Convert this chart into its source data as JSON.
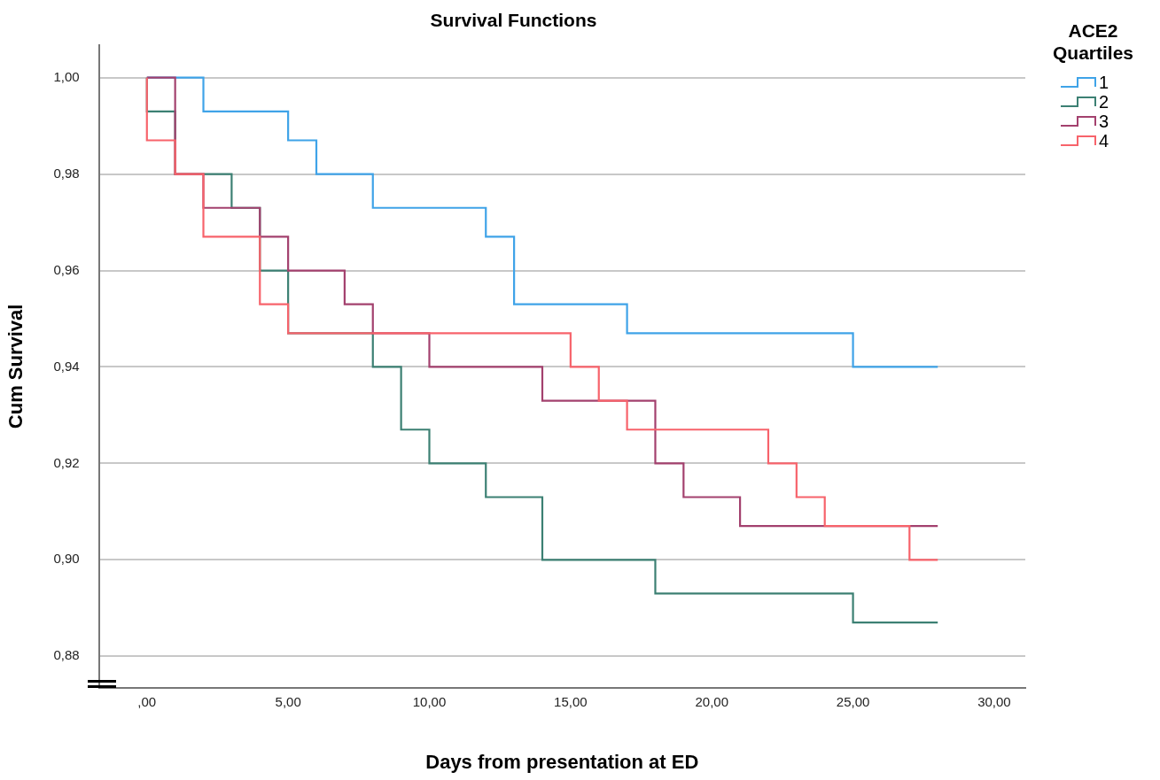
{
  "chart_data": {
    "type": "step",
    "title": "Survival Functions",
    "xlabel": "Days from presentation at ED",
    "ylabel": "Cum Survival",
    "legend_title": "ACE2 Quartiles",
    "legend": "top right",
    "grid": "y",
    "marker": "none",
    "line_style": "solid",
    "xlim": [
      -1.7,
      31.1
    ],
    "xticks": [
      {
        "value": 0,
        "label": ",00"
      },
      {
        "value": 5,
        "label": "5,00"
      },
      {
        "value": 10,
        "label": "10,00"
      },
      {
        "value": 15,
        "label": "15,00"
      },
      {
        "value": 20,
        "label": "20,00"
      },
      {
        "value": 25,
        "label": "25,00"
      },
      {
        "value": 30,
        "label": "30,00"
      }
    ],
    "ylim": [
      0.8735,
      1.0067
    ],
    "yticks": [
      {
        "value": 0.88,
        "label": "0,88"
      },
      {
        "value": 0.9,
        "label": "0,90"
      },
      {
        "value": 0.92,
        "label": "0,92"
      },
      {
        "value": 0.94,
        "label": "0,94"
      },
      {
        "value": 0.96,
        "label": "0,96"
      },
      {
        "value": 0.98,
        "label": "0,98"
      },
      {
        "value": 1,
        "label": "1,00"
      }
    ],
    "series": [
      {
        "name": "1",
        "color": "#3fa3e8",
        "x": [
          0,
          2,
          5,
          6,
          8,
          12,
          13,
          17,
          25,
          28
        ],
        "values": [
          1,
          0.993,
          0.987,
          0.98,
          0.973,
          0.967,
          0.953,
          0.947,
          0.94,
          0.94
        ]
      },
      {
        "name": "2",
        "color": "#3c8073",
        "x": [
          0,
          0,
          1,
          3,
          4,
          5,
          8,
          9,
          10,
          12,
          14,
          18,
          25,
          28
        ],
        "values": [
          1,
          0.993,
          0.98,
          0.973,
          0.96,
          0.947,
          0.94,
          0.927,
          0.92,
          0.913,
          0.9,
          0.893,
          0.887,
          0.887
        ]
      },
      {
        "name": "3",
        "color": "#a3416e",
        "x": [
          0,
          1,
          2,
          4,
          5,
          7,
          8,
          10,
          14,
          18,
          19,
          21,
          28
        ],
        "values": [
          1,
          0.98,
          0.973,
          0.967,
          0.96,
          0.953,
          0.947,
          0.94,
          0.933,
          0.92,
          0.913,
          0.907,
          0.907
        ]
      },
      {
        "name": "4",
        "color": "#f7636b",
        "x": [
          0,
          0,
          1,
          2,
          4,
          5,
          15,
          16,
          17,
          22,
          23,
          24,
          27,
          28
        ],
        "values": [
          1,
          0.987,
          0.98,
          0.967,
          0.953,
          0.947,
          0.94,
          0.933,
          0.927,
          0.92,
          0.913,
          0.907,
          0.9,
          0.9
        ]
      }
    ]
  }
}
